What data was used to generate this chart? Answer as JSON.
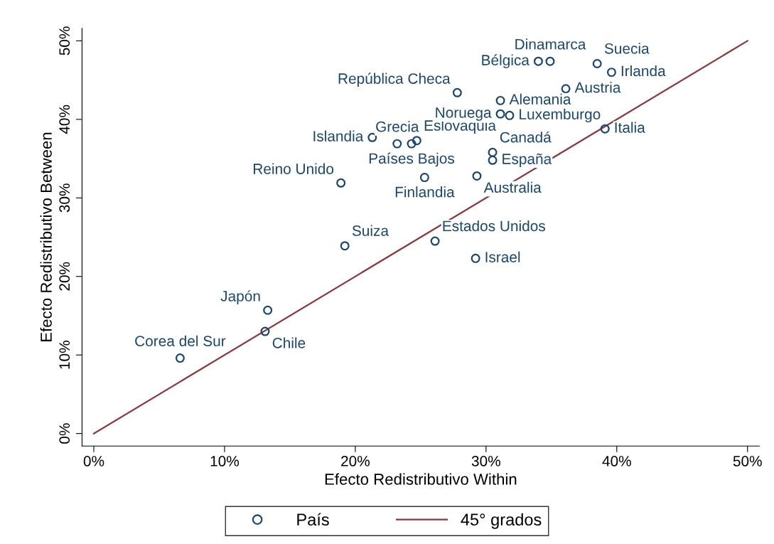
{
  "chart_data": {
    "type": "scatter",
    "xlabel": "Efecto Redistributivo Within",
    "ylabel": "Efecto Redistributivo Between",
    "xlim": [
      -0.9,
      50.9
    ],
    "ylim": [
      -1.6,
      51.6
    ],
    "xticks": [
      {
        "value": 0,
        "label": "0%"
      },
      {
        "value": 10,
        "label": "10%"
      },
      {
        "value": 20,
        "label": "20%"
      },
      {
        "value": 30,
        "label": "30%"
      },
      {
        "value": 40,
        "label": "40%"
      },
      {
        "value": 50,
        "label": "50%"
      }
    ],
    "yticks": [
      {
        "value": 0,
        "label": "0%"
      },
      {
        "value": 10,
        "label": "10%"
      },
      {
        "value": 20,
        "label": "20%"
      },
      {
        "value": 30,
        "label": "30%"
      },
      {
        "value": 40,
        "label": "40%"
      },
      {
        "value": 50,
        "label": "50%"
      }
    ],
    "grid": false,
    "legend": "bottom",
    "marker": "circle",
    "series": [
      {
        "name": "País",
        "color": "#1a476f",
        "x": [
          6.6,
          13.1,
          13.3,
          19.2,
          18.9,
          21.3,
          23.2,
          24.3,
          24.7,
          25.3,
          26.1,
          27.8,
          29.3,
          29.2,
          30.5,
          30.5,
          31.1,
          31.1,
          31.8,
          34.0,
          34.9,
          36.1,
          38.5,
          39.6,
          39.1
        ],
        "values": [
          9.6,
          13.0,
          15.7,
          23.9,
          31.9,
          37.7,
          36.9,
          36.9,
          37.3,
          32.6,
          24.5,
          43.4,
          32.8,
          22.3,
          35.8,
          34.8,
          42.4,
          40.7,
          40.5,
          47.4,
          47.4,
          43.9,
          47.1,
          46.0,
          38.8
        ]
      },
      {
        "name": "45° grados",
        "type": "line",
        "color": "#90353b",
        "marker": "none",
        "x": [
          0,
          50
        ],
        "values": [
          0,
          50
        ]
      }
    ],
    "annotations": [
      {
        "text": "Corea del Sur",
        "x": 6.6,
        "y": 9.6
      },
      {
        "text": "Chile",
        "x": 13.1,
        "y": 13.0
      },
      {
        "text": "Japón",
        "x": 13.3,
        "y": 15.7
      },
      {
        "text": "Suiza",
        "x": 19.2,
        "y": 23.9
      },
      {
        "text": "Reino Unido",
        "x": 18.9,
        "y": 31.9
      },
      {
        "text": "Islandia",
        "x": 21.3,
        "y": 37.7
      },
      {
        "text": "Grecia",
        "x": 23.2,
        "y": 36.9
      },
      {
        "text": "Países Bajos",
        "x": 24.3,
        "y": 36.9
      },
      {
        "text": "Eslovaquia",
        "x": 24.7,
        "y": 37.3
      },
      {
        "text": "Finlandia",
        "x": 25.3,
        "y": 32.6
      },
      {
        "text": "Estados Unidos",
        "x": 26.1,
        "y": 24.5
      },
      {
        "text": "República Checa",
        "x": 27.8,
        "y": 43.4
      },
      {
        "text": "Australia",
        "x": 29.3,
        "y": 32.8
      },
      {
        "text": "Israel",
        "x": 29.2,
        "y": 22.3
      },
      {
        "text": "Canadá",
        "x": 30.5,
        "y": 35.8
      },
      {
        "text": "España",
        "x": 30.5,
        "y": 34.8
      },
      {
        "text": "Alemania",
        "x": 31.1,
        "y": 42.4
      },
      {
        "text": "Noruega",
        "x": 31.1,
        "y": 40.7
      },
      {
        "text": "Luxemburgo",
        "x": 31.8,
        "y": 40.5
      },
      {
        "text": "Bélgica",
        "x": 34.0,
        "y": 47.4
      },
      {
        "text": "Dinamarca",
        "x": 34.9,
        "y": 47.4
      },
      {
        "text": "Austria",
        "x": 36.1,
        "y": 43.9
      },
      {
        "text": "Suecia",
        "x": 38.5,
        "y": 47.1
      },
      {
        "text": "Irlanda",
        "x": 39.6,
        "y": 46.0
      },
      {
        "text": "Italia",
        "x": 39.1,
        "y": 38.8
      }
    ]
  }
}
